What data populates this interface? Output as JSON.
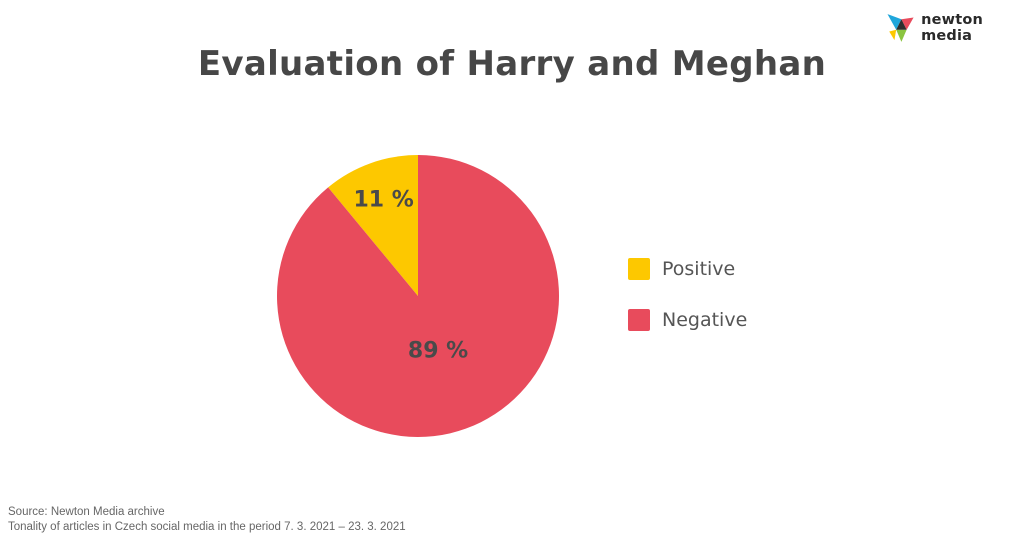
{
  "logo": {
    "text": "newton media",
    "icon": "newton-media-logo-icon"
  },
  "chart_data": {
    "type": "pie",
    "title": "Evaluation of Harry and Meghan",
    "slices": [
      {
        "name": "Positive",
        "value": 11,
        "label": "11 %",
        "color": "#FDC800"
      },
      {
        "name": "Negative",
        "value": 89,
        "label": "89 %",
        "color": "#E84B5C"
      }
    ],
    "legend": "right"
  },
  "footer": {
    "source": "Source: Newton Media archive",
    "note": "Tonality of articles in Czech social media in the period 7. 3. 2021 – 23. 3. 2021"
  }
}
